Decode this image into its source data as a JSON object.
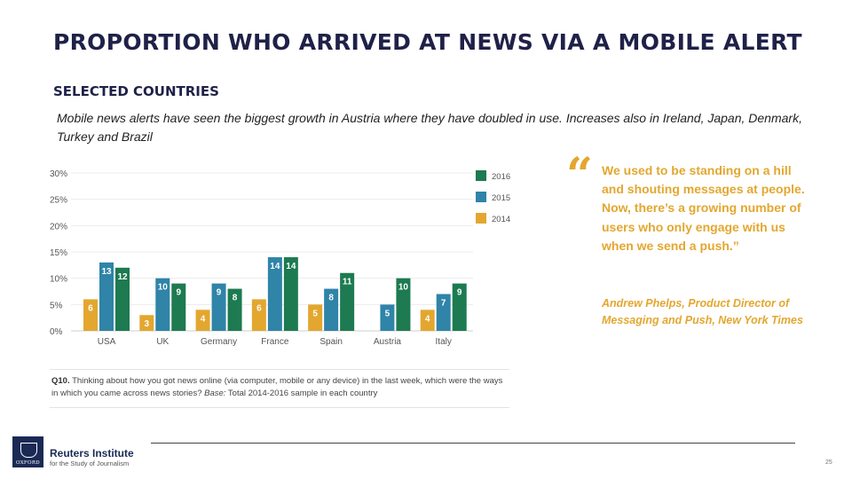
{
  "title": "PROPORTION WHO ARRIVED AT NEWS VIA A MOBILE ALERT",
  "subtitle": "SELECTED COUNTRIES",
  "description": "Mobile news alerts have seen the biggest growth in Austria where they have doubled in use. Increases also in Ireland, Japan, Denmark, Turkey and Brazil",
  "chart_data": {
    "type": "bar",
    "categories": [
      "USA",
      "UK",
      "Germany",
      "France",
      "Spain",
      "Austria",
      "Italy"
    ],
    "series": [
      {
        "name": "2014",
        "color": "#e3a72f",
        "values": [
          6,
          3,
          4,
          6,
          5,
          null,
          4
        ]
      },
      {
        "name": "2015",
        "color": "#2f84a8",
        "values": [
          13,
          10,
          9,
          14,
          8,
          5,
          7
        ]
      },
      {
        "name": "2016",
        "color": "#1d7a51",
        "values": [
          12,
          9,
          8,
          14,
          11,
          10,
          9
        ]
      }
    ],
    "ylim": [
      0,
      30
    ],
    "yticks": [
      "0%",
      "5%",
      "10%",
      "15%",
      "20%",
      "25%",
      "30%"
    ],
    "legend": "top-right",
    "grid": true
  },
  "question_note": {
    "label": "Q10.",
    "text": "Thinking about how you got news online (via computer, mobile or any device) in the last week, which were the ways in which you came across news stories?",
    "base_label": "Base:",
    "base_text": "Total 2014-2016 sample in each country"
  },
  "quote": {
    "mark": "“",
    "text": "We used to be standing on a hill and shouting messages at people. Now, there’s a growing number of users who only engage with us when we send a push.”",
    "attribution": "Andrew Phelps, Product Director of Messaging and Push, New York Times"
  },
  "footer": {
    "org_name": "Reuters Institute",
    "org_sub": "for the Study of Journalism",
    "crest_text": "OXFORD",
    "page_number": "25"
  }
}
